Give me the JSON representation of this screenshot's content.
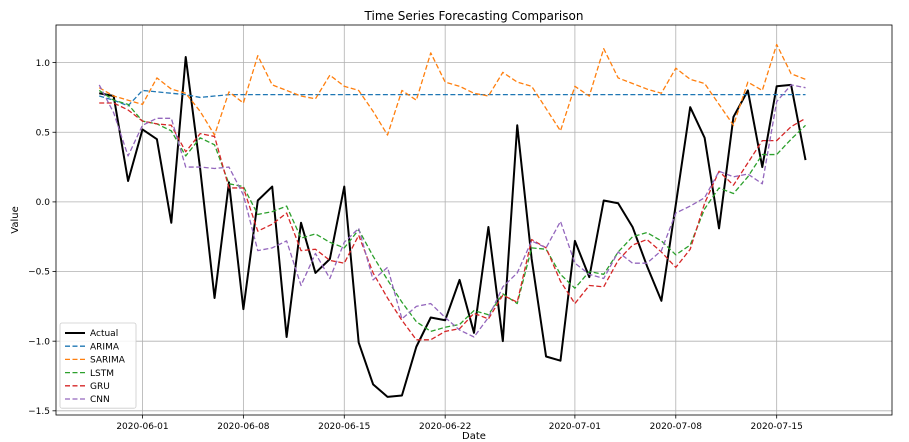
{
  "chart_data": {
    "type": "line",
    "title": "Time Series Forecasting Comparison",
    "xlabel": "Date",
    "ylabel": "Value",
    "x_start": "2020-05-29",
    "x_end": "2020-07-20",
    "xlim": [
      "2020-05-26",
      "2020-07-23"
    ],
    "ylim": [
      -1.53,
      1.27
    ],
    "x_ticks": [
      {
        "date": "2020-06-01",
        "label": "2020-06-01"
      },
      {
        "date": "2020-06-08",
        "label": "2020-06-08"
      },
      {
        "date": "2020-06-15",
        "label": "2020-06-15"
      },
      {
        "date": "2020-06-22",
        "label": "2020-06-22"
      },
      {
        "date": "2020-07-01",
        "label": "2020-07-01"
      },
      {
        "date": "2020-07-08",
        "label": "2020-07-08"
      },
      {
        "date": "2020-07-15",
        "label": "2020-07-15"
      }
    ],
    "y_ticks": [
      {
        "value": 1.0,
        "label": "1.0"
      },
      {
        "value": 0.5,
        "label": "0.5"
      },
      {
        "value": 0.0,
        "label": "0.0"
      },
      {
        "value": -0.5,
        "label": "−0.5"
      },
      {
        "value": -1.0,
        "label": "−1.0"
      },
      {
        "value": -1.5,
        "label": "−1.5"
      }
    ],
    "grid": true,
    "legend_position": "lower-left",
    "series": [
      {
        "name": "Actual",
        "color": "#000000",
        "style": "solid",
        "values": [
          0.78,
          0.76,
          0.15,
          0.52,
          0.45,
          -0.15,
          1.04,
          0.24,
          -0.69,
          0.14,
          -0.77,
          0.01,
          0.11,
          -0.97,
          -0.15,
          -0.51,
          -0.41,
          0.11,
          -1.01,
          -1.31,
          -1.4,
          -1.39,
          -1.04,
          -0.83,
          -0.85,
          -0.56,
          -0.94,
          -0.18,
          -1.0,
          0.55,
          -0.41,
          -1.11,
          -1.14,
          -0.28,
          -0.54,
          0.01,
          -0.01,
          -0.18,
          -0.46,
          -0.71,
          -0.02,
          0.68,
          0.46,
          -0.19,
          0.61,
          0.8,
          0.25,
          0.83,
          0.84,
          0.3
        ]
      },
      {
        "name": "ARIMA",
        "color": "#1f77b4",
        "style": "dashed",
        "values": [
          0.76,
          0.73,
          0.69,
          0.8,
          0.79,
          0.78,
          0.77,
          0.75,
          0.76,
          0.77,
          0.77,
          0.77,
          0.77,
          0.77,
          0.77,
          0.77,
          0.77,
          0.77,
          0.77,
          0.77,
          0.77,
          0.77,
          0.77,
          0.77,
          0.77,
          0.77,
          0.77,
          0.77,
          0.77,
          0.77,
          0.77,
          0.77,
          0.77,
          0.77,
          0.77,
          0.77,
          0.77,
          0.77,
          0.77,
          0.77,
          0.77,
          0.77,
          0.77,
          0.77,
          0.77,
          0.77,
          0.77,
          0.77,
          0.77,
          0.77
        ]
      },
      {
        "name": "SARIMA",
        "color": "#ff7f0e",
        "style": "dashed",
        "values": [
          0.82,
          0.76,
          0.73,
          0.7,
          0.89,
          0.81,
          0.78,
          0.65,
          0.48,
          0.79,
          0.71,
          1.05,
          0.84,
          0.8,
          0.76,
          0.74,
          0.91,
          0.83,
          0.8,
          0.65,
          0.48,
          0.8,
          0.73,
          1.07,
          0.86,
          0.83,
          0.78,
          0.76,
          0.93,
          0.86,
          0.83,
          0.67,
          0.51,
          0.83,
          0.76,
          1.1,
          0.89,
          0.85,
          0.81,
          0.78,
          0.96,
          0.88,
          0.85,
          0.7,
          0.55,
          0.86,
          0.8,
          1.13,
          0.92,
          0.88
        ]
      },
      {
        "name": "LSTM",
        "color": "#2ca02c",
        "style": "dashed",
        "values": [
          0.8,
          0.73,
          0.7,
          0.58,
          0.56,
          0.51,
          0.33,
          0.46,
          0.41,
          0.13,
          0.11,
          -0.09,
          -0.07,
          -0.03,
          -0.26,
          -0.23,
          -0.29,
          -0.33,
          -0.2,
          -0.39,
          -0.56,
          -0.72,
          -0.86,
          -0.93,
          -0.9,
          -0.88,
          -0.78,
          -0.81,
          -0.66,
          -0.73,
          -0.33,
          -0.34,
          -0.52,
          -0.62,
          -0.5,
          -0.52,
          -0.36,
          -0.25,
          -0.22,
          -0.28,
          -0.38,
          -0.31,
          -0.05,
          0.1,
          0.06,
          0.18,
          0.34,
          0.34,
          0.45,
          0.55
        ]
      },
      {
        "name": "GRU",
        "color": "#d62728",
        "style": "dashed",
        "values": [
          0.71,
          0.71,
          0.66,
          0.58,
          0.56,
          0.55,
          0.36,
          0.49,
          0.47,
          0.1,
          0.1,
          -0.21,
          -0.16,
          -0.08,
          -0.35,
          -0.34,
          -0.42,
          -0.44,
          -0.24,
          -0.51,
          -0.69,
          -0.85,
          -0.99,
          -0.99,
          -0.93,
          -0.91,
          -0.8,
          -0.84,
          -0.67,
          -0.72,
          -0.27,
          -0.33,
          -0.57,
          -0.73,
          -0.6,
          -0.61,
          -0.42,
          -0.31,
          -0.27,
          -0.36,
          -0.47,
          -0.34,
          -0.01,
          0.22,
          0.12,
          0.28,
          0.44,
          0.44,
          0.54,
          0.6
        ]
      },
      {
        "name": "CNN",
        "color": "#9467bd",
        "style": "dashed",
        "values": [
          0.84,
          0.64,
          0.33,
          0.55,
          0.6,
          0.6,
          0.25,
          0.25,
          0.24,
          0.25,
          0.05,
          -0.35,
          -0.33,
          -0.28,
          -0.6,
          -0.37,
          -0.55,
          -0.29,
          -0.19,
          -0.56,
          -0.47,
          -0.84,
          -0.75,
          -0.73,
          -0.83,
          -0.92,
          -0.97,
          -0.83,
          -0.61,
          -0.51,
          -0.28,
          -0.33,
          -0.14,
          -0.44,
          -0.52,
          -0.55,
          -0.36,
          -0.44,
          -0.44,
          -0.35,
          -0.08,
          -0.03,
          0.03,
          0.22,
          0.18,
          0.2,
          0.13,
          0.72,
          0.84,
          0.82
        ]
      }
    ]
  }
}
